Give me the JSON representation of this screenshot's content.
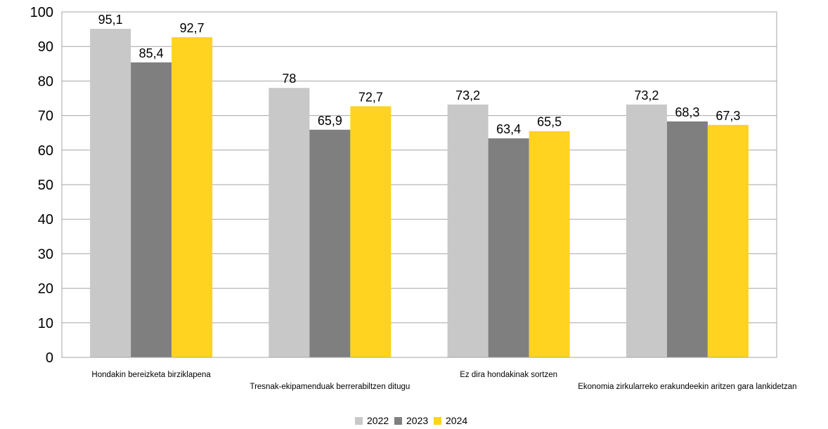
{
  "chart_data": {
    "type": "bar",
    "categories": [
      "Hondakin bereizketa birziklapena",
      "Tresnak-ekipamenduak berrerabiltzen ditugu",
      "Ez dira hondakinak sortzen",
      "Ekonomia zirkularreko erakundeekin aritzen gara lankidetzan"
    ],
    "series": [
      {
        "name": "2022",
        "color": "#C8C8C8",
        "values": [
          95.1,
          78,
          73.2,
          73.2
        ],
        "labels": [
          "95,1",
          "78",
          "73,2",
          "73,2"
        ]
      },
      {
        "name": "2023",
        "color": "#7F7F7F",
        "values": [
          85.4,
          65.9,
          63.4,
          68.3
        ],
        "labels": [
          "85,4",
          "65,9",
          "63,4",
          "68,3"
        ]
      },
      {
        "name": "2024",
        "color": "#FFD320",
        "values": [
          92.7,
          72.7,
          65.5,
          67.3
        ],
        "labels": [
          "92,7",
          "72,7",
          "65,5",
          "67,3"
        ]
      }
    ],
    "ylim": [
      0,
      100
    ],
    "yticks": [
      0,
      10,
      20,
      30,
      40,
      50,
      60,
      70,
      80,
      90,
      100
    ],
    "grid": true,
    "gridColor": "#A6A6A6",
    "legend_position": "bottom"
  }
}
